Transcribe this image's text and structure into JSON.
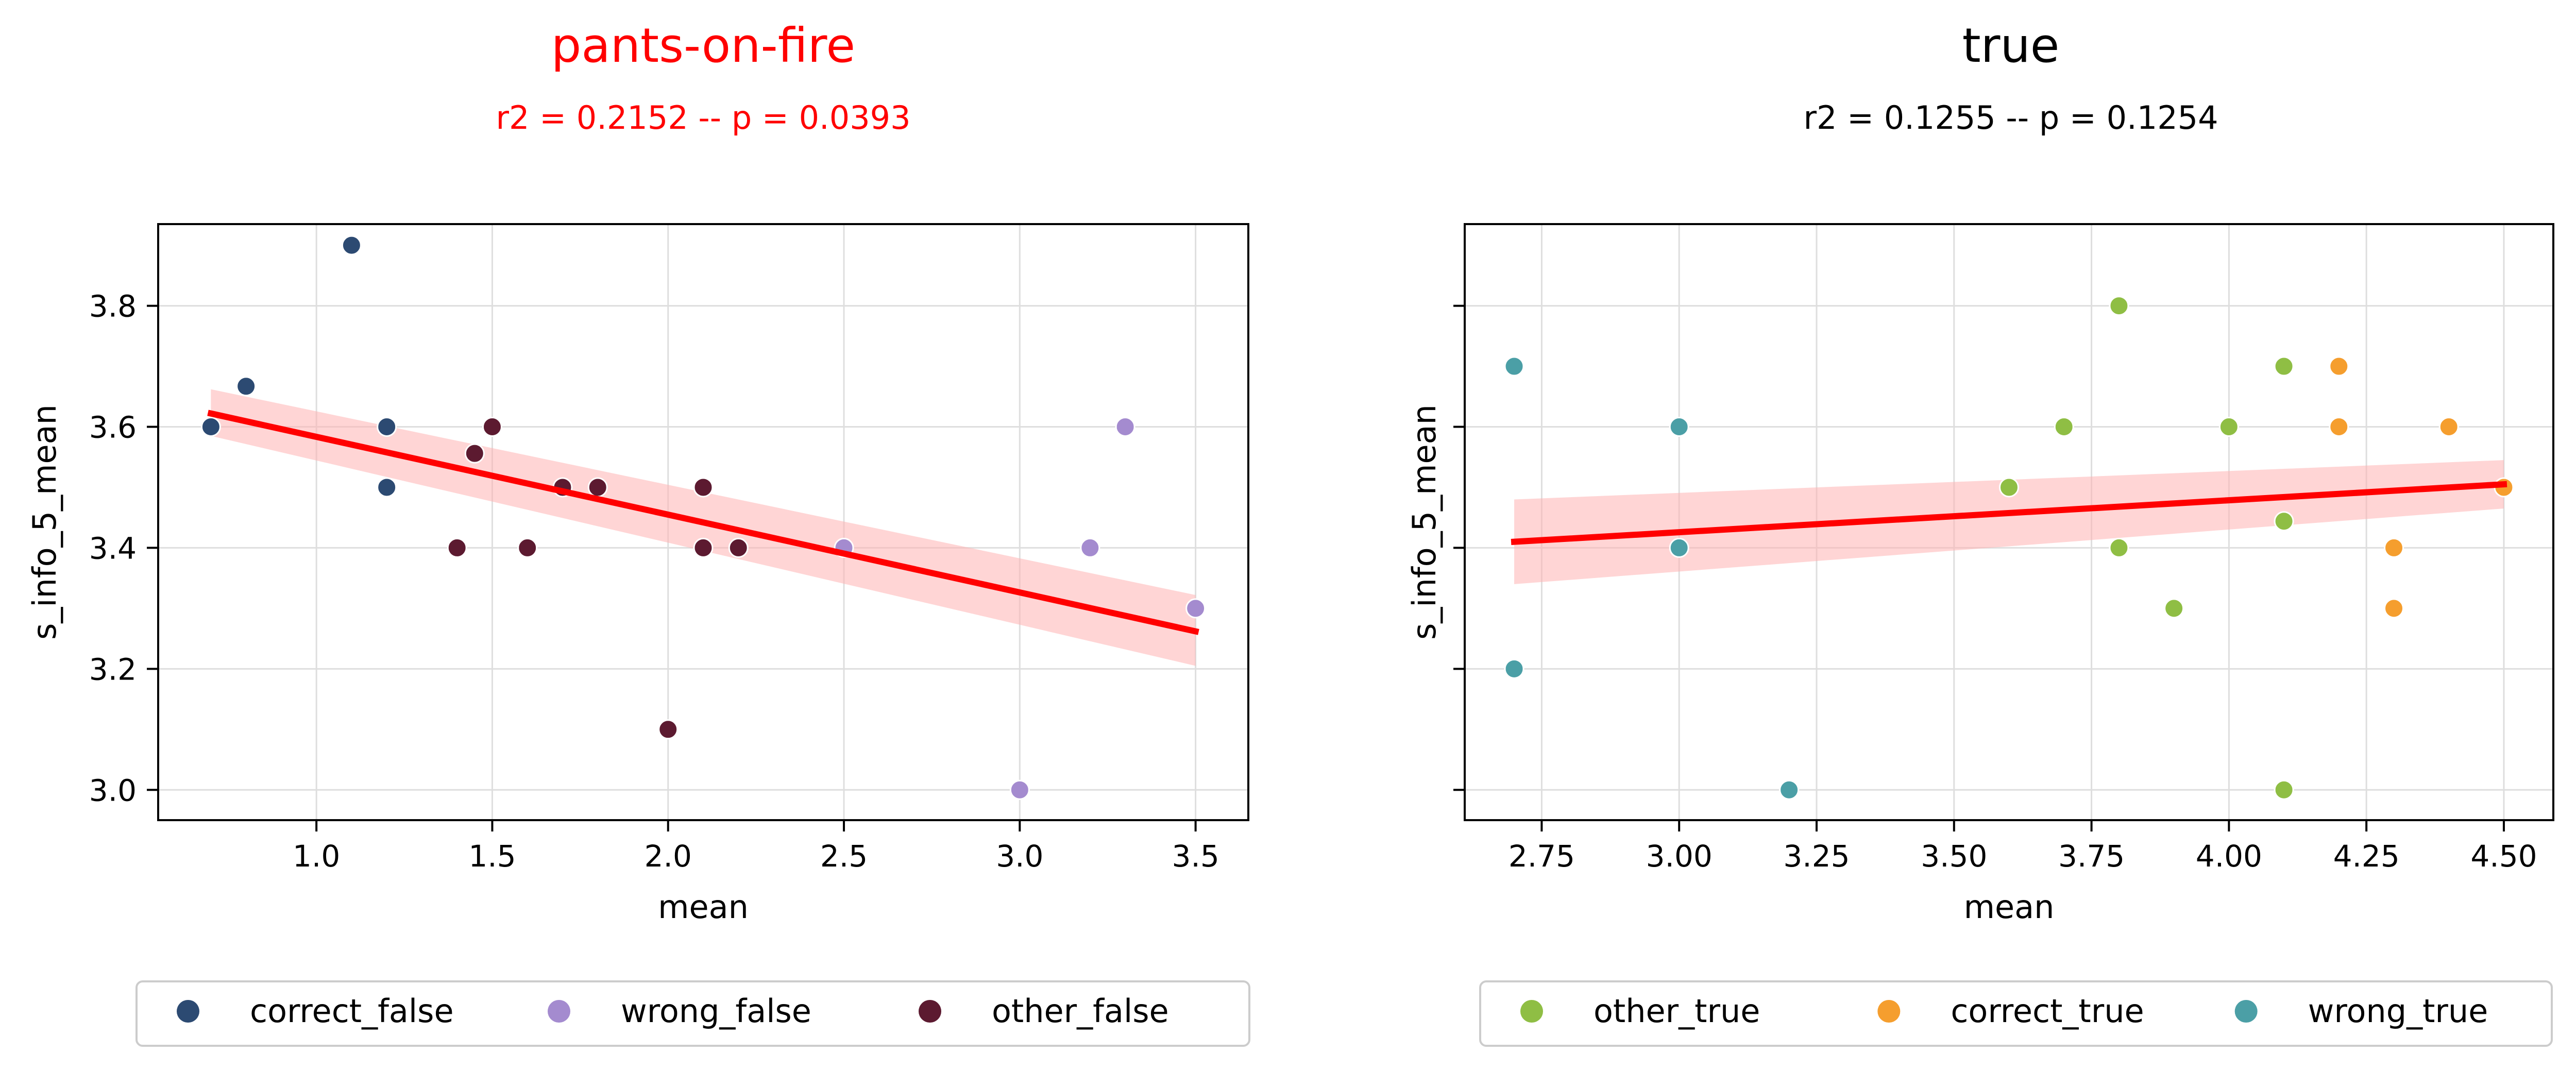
{
  "chart_data": [
    {
      "type": "scatter",
      "title": "pants-on-fire",
      "subtitle": "r2 = 0.2152 -- p = 0.0393",
      "title_color": "#ff0000",
      "xlabel": "mean",
      "ylabel": "s_info_5_mean",
      "xlim": [
        0.55,
        3.65
      ],
      "ylim": [
        2.95,
        3.935
      ],
      "xticks": [
        1.0,
        1.5,
        2.0,
        2.5,
        3.0,
        3.5
      ],
      "xtick_labels": [
        "1.0",
        "1.5",
        "2.0",
        "2.5",
        "3.0",
        "3.5"
      ],
      "yticks": [
        3.0,
        3.2,
        3.4,
        3.6,
        3.8
      ],
      "ytick_labels": [
        "3.0",
        "3.2",
        "3.4",
        "3.6",
        "3.8"
      ],
      "show_ytick_labels": true,
      "grid": true,
      "legend_position": "bottom-center",
      "series": [
        {
          "name": "correct_false",
          "color": "#2c4a72",
          "points": [
            [
              0.7,
              3.6
            ],
            [
              0.8,
              3.667
            ],
            [
              1.1,
              3.9
            ],
            [
              1.2,
              3.6
            ],
            [
              1.2,
              3.5
            ]
          ]
        },
        {
          "name": "wrong_false",
          "color": "#a48bcf",
          "points": [
            [
              2.5,
              3.4
            ],
            [
              3.0,
              3.0
            ],
            [
              3.2,
              3.4
            ],
            [
              3.3,
              3.6
            ],
            [
              3.5,
              3.3
            ]
          ]
        },
        {
          "name": "other_false",
          "color": "#5c1a30",
          "points": [
            [
              1.4,
              3.4
            ],
            [
              1.45,
              3.556
            ],
            [
              1.5,
              3.6
            ],
            [
              1.6,
              3.4
            ],
            [
              1.7,
              3.5
            ],
            [
              1.8,
              3.5
            ],
            [
              2.0,
              3.1
            ],
            [
              2.1,
              3.5
            ],
            [
              2.1,
              3.4
            ],
            [
              2.2,
              3.4
            ]
          ]
        }
      ],
      "regression": {
        "color": "#ff0000",
        "band_color": "#ffb3b3",
        "x_range": [
          0.7,
          3.5
        ],
        "line": [
          3.622,
          3.262
        ],
        "band_lower": [
          3.585,
          3.205
        ],
        "band_upper": [
          3.662,
          3.322
        ]
      }
    },
    {
      "type": "scatter",
      "title": "true",
      "subtitle": "r2 = 0.1255 -- p = 0.1254",
      "title_color": "#000000",
      "xlabel": "mean",
      "ylabel": "s_info_5_mean",
      "xlim": [
        2.61,
        4.59
      ],
      "ylim": [
        2.95,
        3.935
      ],
      "xticks": [
        2.75,
        3.0,
        3.25,
        3.5,
        3.75,
        4.0,
        4.25,
        4.5
      ],
      "xtick_labels": [
        "2.75",
        "3.00",
        "3.25",
        "3.50",
        "3.75",
        "4.00",
        "4.25",
        "4.50"
      ],
      "yticks": [
        3.0,
        3.2,
        3.4,
        3.6,
        3.8
      ],
      "show_ytick_labels": false,
      "grid": true,
      "legend_position": "bottom-center",
      "series": [
        {
          "name": "other_true",
          "color": "#8fbe44",
          "points": [
            [
              3.6,
              3.5
            ],
            [
              3.7,
              3.6
            ],
            [
              3.8,
              3.8
            ],
            [
              3.8,
              3.4
            ],
            [
              3.9,
              3.3
            ],
            [
              4.0,
              3.6
            ],
            [
              4.1,
              3.7
            ],
            [
              4.1,
              3.444
            ],
            [
              4.1,
              3.0
            ]
          ]
        },
        {
          "name": "correct_true",
          "color": "#f59e2e",
          "points": [
            [
              4.2,
              3.7
            ],
            [
              4.2,
              3.6
            ],
            [
              4.3,
              3.4
            ],
            [
              4.3,
              3.3
            ],
            [
              4.4,
              3.6
            ],
            [
              4.5,
              3.5
            ]
          ]
        },
        {
          "name": "wrong_true",
          "color": "#4b9fa6",
          "points": [
            [
              2.7,
              3.7
            ],
            [
              2.7,
              3.2
            ],
            [
              3.0,
              3.6
            ],
            [
              3.0,
              3.4
            ],
            [
              3.2,
              3.0
            ]
          ]
        }
      ],
      "regression": {
        "color": "#ff0000",
        "band_color": "#ffb3b3",
        "x_range": [
          2.7,
          4.5
        ],
        "line": [
          3.41,
          3.505
        ],
        "band_lower": [
          3.34,
          3.465
        ],
        "band_upper": [
          3.48,
          3.545
        ]
      }
    }
  ]
}
